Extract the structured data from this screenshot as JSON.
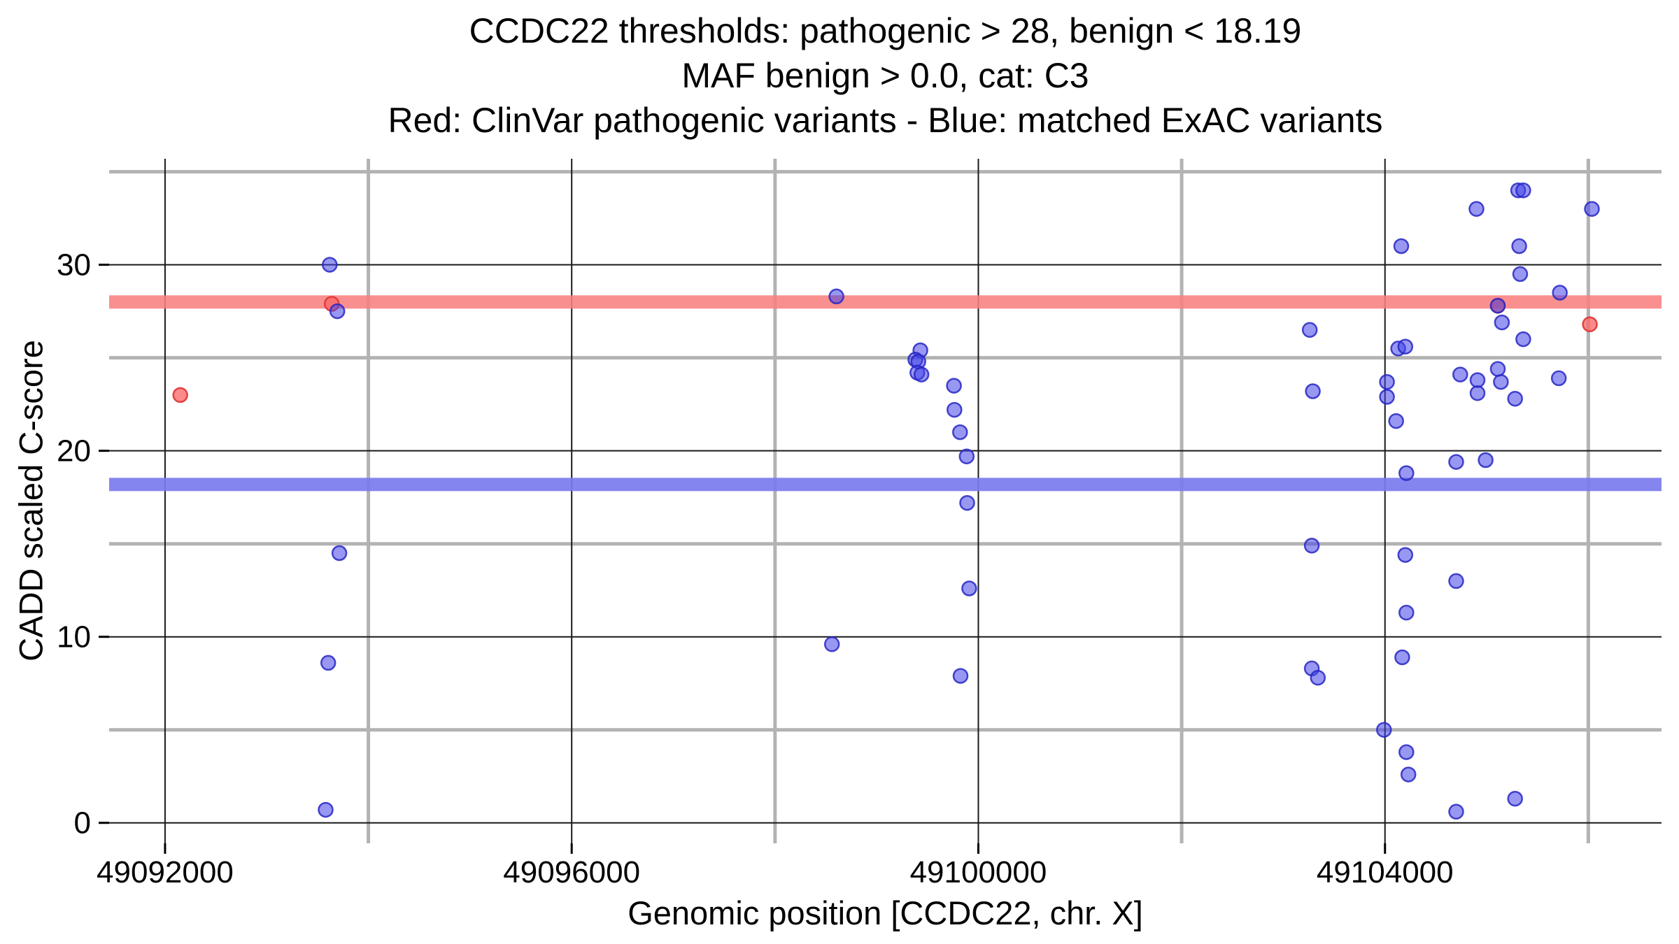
{
  "title": {
    "line1": "CCDC22 thresholds: pathogenic > 28, benign < 18.19",
    "line2": "MAF benign > 0.0, cat: C3",
    "line3": "Red: ClinVar pathogenic variants - Blue: matched ExAC variants"
  },
  "colors": {
    "background": "#ffffff",
    "major_grid": "#1a1a1a",
    "minor_grid": "#b3b3b3",
    "tick": "#000000",
    "text": "#000000",
    "pathogenic_band": "#f8807e",
    "benign_band": "#7b7bee",
    "red_point_fill": "#fb6969",
    "red_point_stroke": "#e13a3a",
    "blue_point_fill": "#4444ea",
    "blue_point_stroke": "#2727c4"
  },
  "chart_data": {
    "type": "scatter",
    "xlabel": "Genomic position [CCDC22, chr. X]",
    "ylabel": "CADD scaled C-score",
    "xlim": [
      49091450,
      49106720
    ],
    "ylim": [
      -1.1,
      35.7
    ],
    "x_major_ticks": [
      49092000,
      49096000,
      49100000,
      49104000
    ],
    "x_minor_gridlines": [
      49094000,
      49098000,
      49102000,
      49106000
    ],
    "y_major_ticks": [
      0,
      10,
      20,
      30
    ],
    "y_minor_gridlines": [
      5,
      15,
      25,
      35
    ],
    "thresholds": {
      "pathogenic": 28,
      "benign": 18.19
    },
    "legend_note": "Red: ClinVar pathogenic variants - Blue: matched ExAC variants",
    "grid": true,
    "series": [
      {
        "name": "ClinVar pathogenic variants",
        "color_key": "red",
        "points": [
          [
            49092150,
            23.0
          ],
          [
            49093640,
            27.9
          ],
          [
            49105110,
            27.8
          ],
          [
            49106015,
            26.8
          ]
        ]
      },
      {
        "name": "matched ExAC variants",
        "color_key": "blue",
        "points": [
          [
            49093620,
            30.0
          ],
          [
            49093695,
            27.5
          ],
          [
            49093715,
            14.5
          ],
          [
            49093605,
            8.6
          ],
          [
            49093580,
            0.7
          ],
          [
            49098604,
            28.3
          ],
          [
            49098560,
            9.6
          ],
          [
            49099430,
            25.4
          ],
          [
            49099380,
            24.9
          ],
          [
            49099410,
            24.8
          ],
          [
            49099400,
            24.2
          ],
          [
            49099440,
            24.1
          ],
          [
            49099760,
            23.5
          ],
          [
            49099765,
            22.2
          ],
          [
            49099820,
            21.0
          ],
          [
            49099885,
            19.7
          ],
          [
            49099890,
            17.2
          ],
          [
            49099910,
            12.6
          ],
          [
            49099825,
            7.9
          ],
          [
            49103260,
            26.5
          ],
          [
            49103290,
            23.2
          ],
          [
            49103280,
            14.9
          ],
          [
            49103280,
            8.3
          ],
          [
            49103340,
            7.8
          ],
          [
            49103990,
            5.0
          ],
          [
            49104020,
            23.7
          ],
          [
            49104020,
            22.9
          ],
          [
            49104110,
            21.6
          ],
          [
            49104130,
            25.5
          ],
          [
            49104200,
            25.6
          ],
          [
            49104160,
            31.0
          ],
          [
            49104200,
            14.4
          ],
          [
            49104210,
            18.8
          ],
          [
            49104210,
            11.3
          ],
          [
            49104170,
            8.9
          ],
          [
            49104210,
            3.8
          ],
          [
            49104230,
            2.6
          ],
          [
            49104700,
            19.4
          ],
          [
            49104700,
            13.0
          ],
          [
            49104700,
            0.6
          ],
          [
            49104740,
            24.1
          ],
          [
            49104900,
            33.0
          ],
          [
            49104910,
            23.8
          ],
          [
            49104910,
            23.1
          ],
          [
            49104990,
            19.5
          ],
          [
            49105110,
            27.8
          ],
          [
            49105110,
            24.4
          ],
          [
            49105140,
            23.7
          ],
          [
            49105150,
            26.9
          ],
          [
            49105280,
            22.8
          ],
          [
            49105280,
            1.3
          ],
          [
            49105310,
            34.0
          ],
          [
            49105360,
            34.0
          ],
          [
            49105320,
            31.0
          ],
          [
            49105330,
            29.5
          ],
          [
            49105360,
            26.0
          ],
          [
            49105710,
            23.9
          ],
          [
            49105720,
            28.5
          ],
          [
            49106035,
            33.0
          ]
        ]
      }
    ]
  }
}
